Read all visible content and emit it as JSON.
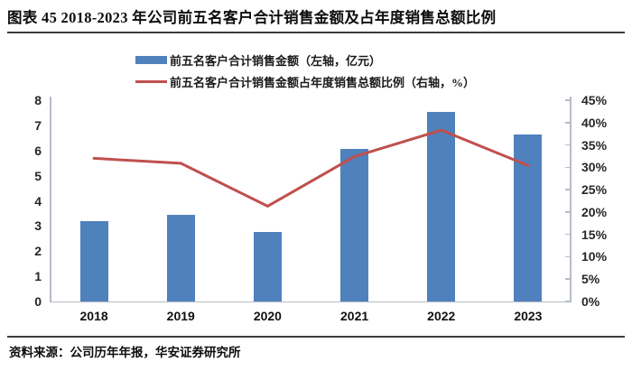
{
  "header": {
    "title": "图表 45 2018-2023 年公司前五名客户合计销售金额及占年度销售总额比例"
  },
  "legend": {
    "items": [
      {
        "swatch": "bar-swatch",
        "color": "#4F81BD",
        "label": "前五名客户合计销售金额（左轴，亿元）"
      },
      {
        "swatch": "line-swatch",
        "color": "#C0504D",
        "label": "前五名客户合计销售金额占年度销售总额比例（右轴，%）"
      }
    ]
  },
  "chart_data": {
    "type": "bar+line",
    "title": "2018-2023 年公司前五名客户合计销售金额及占年度销售总额比例",
    "categories": [
      "2018",
      "2019",
      "2020",
      "2021",
      "2022",
      "2023"
    ],
    "series": [
      {
        "name": "前五名客户合计销售金额（左轴，亿元）",
        "type": "bar",
        "axis": "left",
        "color": "#4F81BD",
        "values": [
          3.2,
          3.45,
          2.75,
          6.05,
          7.55,
          6.65
        ]
      },
      {
        "name": "前五名客户合计销售金额占年度销售总额比例（右轴，%）",
        "type": "line",
        "axis": "right",
        "color": "#C0504D",
        "values": [
          32.0,
          30.9,
          21.3,
          32.4,
          38.3,
          30.4
        ]
      }
    ],
    "left_axis": {
      "min": 0,
      "max": 8,
      "step": 1,
      "ticks": [
        "0",
        "1",
        "2",
        "3",
        "4",
        "5",
        "6",
        "7",
        "8"
      ]
    },
    "right_axis": {
      "min": 0,
      "max": 45,
      "step": 5,
      "ticks": [
        "0%",
        "5%",
        "10%",
        "15%",
        "20%",
        "25%",
        "30%",
        "35%",
        "40%",
        "45%"
      ]
    },
    "grid": false,
    "legend_position": "top"
  },
  "footer": {
    "source": "资料来源：公司历年年报，华安证券研究所"
  }
}
